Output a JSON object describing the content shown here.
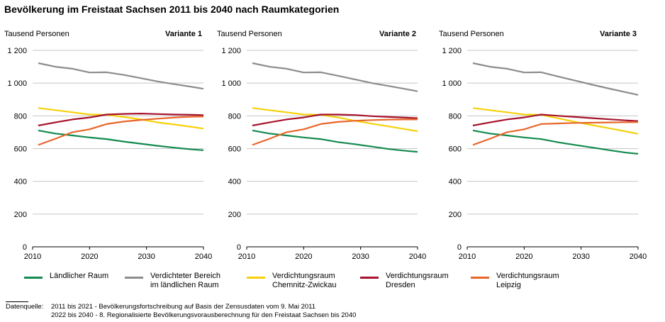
{
  "title": "Bevölkerung im Freistaat Sachsen 2011 bis 2040 nach Raumkategorien",
  "colors": {
    "laendlich": "#138a4e",
    "verdichtet": "#8c8c8c",
    "chemnitz": "#f5d10a",
    "dresden": "#a6122d",
    "leipzig": "#e8662a"
  },
  "chart_data": [
    {
      "type": "line",
      "title": "Variante 1",
      "ylabel": "Tausend Personen",
      "ylim": [
        0,
        1200
      ],
      "yticks": [
        0,
        200,
        400,
        600,
        800,
        1000,
        1200
      ],
      "ytick_labels": [
        "0",
        "200",
        "400",
        "600",
        "800",
        "1 000",
        "1 200"
      ],
      "xlim": [
        2010,
        2040
      ],
      "xticks": [
        2010,
        2020,
        2030,
        2040
      ],
      "xtick_labels": [
        "2010",
        "2020",
        "2030",
        "2040"
      ],
      "grid": "horizontal",
      "x": [
        2011,
        2014,
        2017,
        2020,
        2023,
        2026,
        2029,
        2032,
        2035,
        2038,
        2040
      ],
      "series": [
        {
          "name": "Ländlicher Raum",
          "key": "laendlich",
          "values": [
            711,
            692,
            680,
            668,
            658,
            643,
            630,
            617,
            605,
            595,
            590
          ]
        },
        {
          "name": "Verdichteter Bereich im ländlichen Raum",
          "key": "verdichtet",
          "values": [
            1122,
            1100,
            1088,
            1065,
            1066,
            1050,
            1030,
            1010,
            993,
            977,
            965
          ]
        },
        {
          "name": "Verdichtungsraum Chemnitz-Zwickau",
          "key": "chemnitz",
          "values": [
            848,
            835,
            822,
            808,
            806,
            793,
            778,
            760,
            747,
            732,
            722
          ]
        },
        {
          "name": "Verdichtungsraum Dresden",
          "key": "dresden",
          "values": [
            741,
            760,
            778,
            790,
            808,
            812,
            814,
            811,
            808,
            806,
            804
          ]
        },
        {
          "name": "Verdichtungsraum Leipzig",
          "key": "leipzig",
          "values": [
            622,
            660,
            700,
            718,
            750,
            765,
            775,
            783,
            790,
            795,
            796
          ]
        }
      ]
    },
    {
      "type": "line",
      "title": "Variante 2",
      "ylabel": "Tausend Personen",
      "ylim": [
        0,
        1200
      ],
      "yticks": [
        0,
        200,
        400,
        600,
        800,
        1000,
        1200
      ],
      "ytick_labels": [
        "0",
        "200",
        "400",
        "600",
        "800",
        "1 000",
        "1 200"
      ],
      "xlim": [
        2010,
        2040
      ],
      "xticks": [
        2010,
        2020,
        2030,
        2040
      ],
      "xtick_labels": [
        "2010",
        "2020",
        "2030",
        "2040"
      ],
      "grid": "horizontal",
      "x": [
        2011,
        2014,
        2017,
        2020,
        2023,
        2026,
        2029,
        2032,
        2035,
        2038,
        2040
      ],
      "series": [
        {
          "name": "Ländlicher Raum",
          "key": "laendlich",
          "values": [
            711,
            692,
            680,
            668,
            658,
            640,
            627,
            612,
            597,
            586,
            580
          ]
        },
        {
          "name": "Verdichteter Bereich im ländlichen Raum",
          "key": "verdichtet",
          "values": [
            1122,
            1100,
            1088,
            1065,
            1066,
            1045,
            1023,
            1000,
            982,
            963,
            950
          ]
        },
        {
          "name": "Verdichtungsraum Chemnitz-Zwickau",
          "key": "chemnitz",
          "values": [
            848,
            835,
            822,
            808,
            806,
            790,
            770,
            752,
            735,
            718,
            706
          ]
        },
        {
          "name": "Verdichtungsraum Dresden",
          "key": "dresden",
          "values": [
            741,
            760,
            778,
            790,
            808,
            808,
            805,
            798,
            793,
            789,
            786
          ]
        },
        {
          "name": "Verdichtungsraum Leipzig",
          "key": "leipzig",
          "values": [
            622,
            660,
            700,
            718,
            750,
            763,
            770,
            774,
            777,
            778,
            778
          ]
        }
      ]
    },
    {
      "type": "line",
      "title": "Variante 3",
      "ylabel": "Tausend Personen",
      "ylim": [
        0,
        1200
      ],
      "yticks": [
        0,
        200,
        400,
        600,
        800,
        1000,
        1200
      ],
      "ytick_labels": [
        "0",
        "200",
        "400",
        "600",
        "800",
        "1 000",
        "1 200"
      ],
      "xlim": [
        2010,
        2040
      ],
      "xticks": [
        2010,
        2020,
        2030,
        2040
      ],
      "xtick_labels": [
        "2010",
        "2020",
        "2030",
        "2040"
      ],
      "grid": "horizontal",
      "x": [
        2011,
        2014,
        2017,
        2020,
        2023,
        2026,
        2029,
        2032,
        2035,
        2038,
        2040
      ],
      "series": [
        {
          "name": "Ländlicher Raum",
          "key": "laendlich",
          "values": [
            711,
            692,
            680,
            668,
            658,
            638,
            622,
            606,
            590,
            575,
            568
          ]
        },
        {
          "name": "Verdichteter Bereich im ländlichen Raum",
          "key": "verdichtet",
          "values": [
            1122,
            1100,
            1088,
            1065,
            1066,
            1040,
            1015,
            990,
            966,
            943,
            928
          ]
        },
        {
          "name": "Verdichtungsraum Chemnitz-Zwickau",
          "key": "chemnitz",
          "values": [
            848,
            835,
            822,
            808,
            806,
            785,
            763,
            743,
            724,
            704,
            690
          ]
        },
        {
          "name": "Verdichtungsraum Dresden",
          "key": "dresden",
          "values": [
            741,
            760,
            778,
            790,
            808,
            800,
            793,
            786,
            779,
            772,
            768
          ]
        },
        {
          "name": "Verdichtungsraum Leipzig",
          "key": "leipzig",
          "values": [
            622,
            660,
            700,
            718,
            750,
            754,
            757,
            758,
            760,
            761,
            762
          ]
        }
      ]
    }
  ],
  "legend": [
    {
      "key": "laendlich",
      "line1": "Ländlicher Raum",
      "line2": ""
    },
    {
      "key": "verdichtet",
      "line1": "Verdichteter Bereich",
      "line2": "im ländlichen Raum"
    },
    {
      "key": "chemnitz",
      "line1": "Verdichtungsraum",
      "line2": "Chemnitz-Zwickau"
    },
    {
      "key": "dresden",
      "line1": "Verdichtungsraum",
      "line2": "Dresden"
    },
    {
      "key": "leipzig",
      "line1": "Verdichtungsraum",
      "line2": "Leipzig"
    }
  ],
  "source": {
    "label": "Datenquelle:",
    "line1": "2011 bis 2021 - Bevölkerungsfortschreibung auf Basis der Zensusdaten vom 9. Mai 2011",
    "line2": "2022 bis 2040 - 8. Regionalisierte Bevölkerungsvorausberechnung für den Freistaat Sachsen bis 2040"
  }
}
